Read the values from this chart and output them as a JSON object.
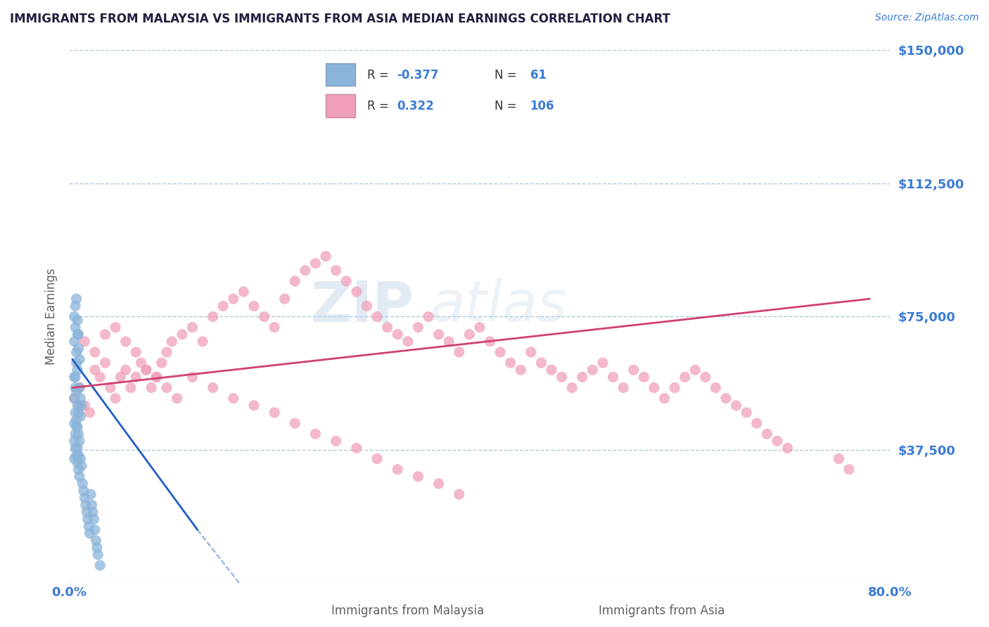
{
  "title": "IMMIGRANTS FROM MALAYSIA VS IMMIGRANTS FROM ASIA MEDIAN EARNINGS CORRELATION CHART",
  "source": "Source: ZipAtlas.com",
  "ylabel": "Median Earnings",
  "xlim": [
    0.0,
    0.8
  ],
  "ylim": [
    0,
    150000
  ],
  "yticks": [
    0,
    37500,
    75000,
    112500,
    150000
  ],
  "ytick_labels": [
    "",
    "$37,500",
    "$75,000",
    "$112,500",
    "$150,000"
  ],
  "right_ytick_labels": [
    "",
    "$37,500",
    "$75,000",
    "$112,500",
    "$150,000"
  ],
  "xticks": [
    0.0,
    0.4,
    0.8
  ],
  "xtick_labels": [
    "0.0%",
    "",
    "80.0%"
  ],
  "color_malaysia": "#8ab4d9",
  "color_asia": "#f0a0b8",
  "line_color_malaysia": "#2060c0",
  "line_color_asia": "#d04070",
  "watermark_zip": "ZIP",
  "watermark_atlas": "atlas",
  "background_color": "#ffffff",
  "grid_color": "#b0c8e0",
  "title_color": "#202040",
  "axis_label_color": "#606060",
  "tick_color": "#3a7bd5",
  "malaysia_x": [
    0.005,
    0.006,
    0.007,
    0.008,
    0.005,
    0.006,
    0.007,
    0.008,
    0.009,
    0.01,
    0.005,
    0.006,
    0.007,
    0.008,
    0.009,
    0.01,
    0.011,
    0.012,
    0.005,
    0.006,
    0.007,
    0.008,
    0.009,
    0.01,
    0.011,
    0.005,
    0.006,
    0.007,
    0.008,
    0.009,
    0.01,
    0.005,
    0.006,
    0.007,
    0.008,
    0.009,
    0.01,
    0.011,
    0.012,
    0.013,
    0.014,
    0.015,
    0.016,
    0.017,
    0.018,
    0.019,
    0.02,
    0.021,
    0.022,
    0.023,
    0.024,
    0.025,
    0.026,
    0.027,
    0.028,
    0.005,
    0.006,
    0.007,
    0.008,
    0.009,
    0.03
  ],
  "malaysia_y": [
    68000,
    72000,
    65000,
    60000,
    58000,
    55000,
    62000,
    70000,
    66000,
    63000,
    52000,
    58000,
    54000,
    50000,
    48000,
    55000,
    52000,
    50000,
    45000,
    48000,
    46000,
    44000,
    42000,
    50000,
    47000,
    40000,
    42000,
    44000,
    38000,
    36000,
    40000,
    35000,
    38000,
    36000,
    34000,
    32000,
    30000,
    35000,
    33000,
    28000,
    26000,
    24000,
    22000,
    20000,
    18000,
    16000,
    14000,
    25000,
    22000,
    20000,
    18000,
    15000,
    12000,
    10000,
    8000,
    75000,
    78000,
    80000,
    74000,
    70000,
    5000
  ],
  "asia_x": [
    0.005,
    0.01,
    0.015,
    0.02,
    0.025,
    0.03,
    0.035,
    0.04,
    0.045,
    0.05,
    0.055,
    0.06,
    0.065,
    0.07,
    0.075,
    0.08,
    0.085,
    0.09,
    0.095,
    0.1,
    0.11,
    0.12,
    0.13,
    0.14,
    0.15,
    0.16,
    0.17,
    0.18,
    0.19,
    0.2,
    0.21,
    0.22,
    0.23,
    0.24,
    0.25,
    0.26,
    0.27,
    0.28,
    0.29,
    0.3,
    0.31,
    0.32,
    0.33,
    0.34,
    0.35,
    0.36,
    0.37,
    0.38,
    0.39,
    0.4,
    0.41,
    0.42,
    0.43,
    0.44,
    0.45,
    0.46,
    0.47,
    0.48,
    0.49,
    0.5,
    0.51,
    0.52,
    0.53,
    0.54,
    0.55,
    0.56,
    0.57,
    0.58,
    0.59,
    0.6,
    0.61,
    0.62,
    0.63,
    0.64,
    0.65,
    0.66,
    0.67,
    0.68,
    0.69,
    0.7,
    0.015,
    0.025,
    0.035,
    0.045,
    0.055,
    0.065,
    0.075,
    0.085,
    0.095,
    0.105,
    0.12,
    0.14,
    0.16,
    0.18,
    0.2,
    0.22,
    0.24,
    0.26,
    0.28,
    0.3,
    0.32,
    0.34,
    0.36,
    0.38,
    0.75,
    0.76
  ],
  "asia_y": [
    52000,
    55000,
    50000,
    48000,
    60000,
    58000,
    62000,
    55000,
    52000,
    58000,
    60000,
    55000,
    58000,
    62000,
    60000,
    55000,
    58000,
    62000,
    65000,
    68000,
    70000,
    72000,
    68000,
    75000,
    78000,
    80000,
    82000,
    78000,
    75000,
    72000,
    80000,
    85000,
    88000,
    90000,
    92000,
    88000,
    85000,
    82000,
    78000,
    75000,
    72000,
    70000,
    68000,
    72000,
    75000,
    70000,
    68000,
    65000,
    70000,
    72000,
    68000,
    65000,
    62000,
    60000,
    65000,
    62000,
    60000,
    58000,
    55000,
    58000,
    60000,
    62000,
    58000,
    55000,
    60000,
    58000,
    55000,
    52000,
    55000,
    58000,
    60000,
    58000,
    55000,
    52000,
    50000,
    48000,
    45000,
    42000,
    40000,
    38000,
    68000,
    65000,
    70000,
    72000,
    68000,
    65000,
    60000,
    58000,
    55000,
    52000,
    58000,
    55000,
    52000,
    50000,
    48000,
    45000,
    42000,
    40000,
    38000,
    35000,
    32000,
    30000,
    28000,
    25000,
    35000,
    32000
  ]
}
